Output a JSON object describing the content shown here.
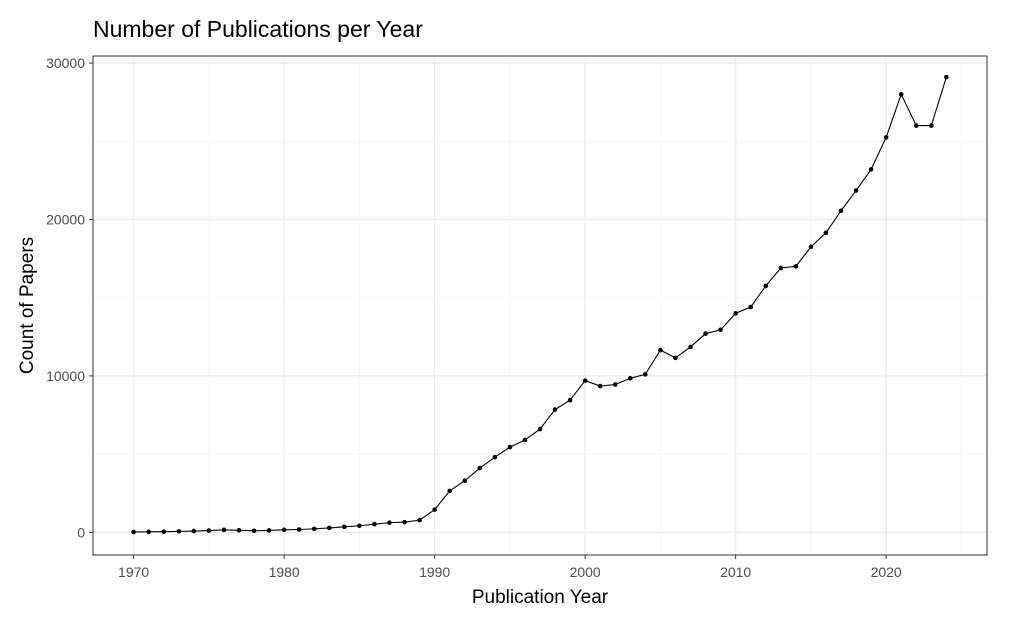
{
  "chart_data": {
    "type": "line",
    "title": "Number of Publications per Year",
    "xlabel": "Publication Year",
    "ylabel": "Count of Papers",
    "xlim": [
      1967.3,
      2026.7
    ],
    "ylim": [
      -1450,
      30450
    ],
    "x_ticks": [
      1970,
      1980,
      1990,
      2000,
      2010,
      2020
    ],
    "y_ticks": [
      0,
      10000,
      20000,
      30000
    ],
    "grid": true,
    "series": [
      {
        "x": [
          1970,
          1971,
          1972,
          1973,
          1974,
          1975,
          1976,
          1977,
          1978,
          1979,
          1980,
          1981,
          1982,
          1983,
          1984,
          1985,
          1986,
          1987,
          1988,
          1989,
          1990,
          1991,
          1992,
          1993,
          1994,
          1995,
          1996,
          1997,
          1998,
          1999,
          2000,
          2001,
          2002,
          2003,
          2004,
          2005,
          2006,
          2007,
          2008,
          2009,
          2010,
          2011,
          2012,
          2013,
          2014,
          2015,
          2016,
          2017,
          2018,
          2019,
          2020,
          2021,
          2022,
          2023,
          2024
        ],
        "y": [
          20,
          30,
          40,
          60,
          80,
          110,
          160,
          130,
          100,
          120,
          160,
          180,
          220,
          280,
          350,
          420,
          520,
          620,
          650,
          780,
          1450,
          2650,
          3300,
          4100,
          4800,
          5450,
          5900,
          6600,
          7850,
          8450,
          9700,
          9350,
          9450,
          9850,
          10100,
          11650,
          11150,
          11850,
          12700,
          12950,
          14000,
          14400,
          15750,
          16900,
          17000,
          18250,
          19150,
          20550,
          21850,
          23200,
          25250,
          28000,
          26000,
          26000,
          29100
        ]
      }
    ]
  }
}
